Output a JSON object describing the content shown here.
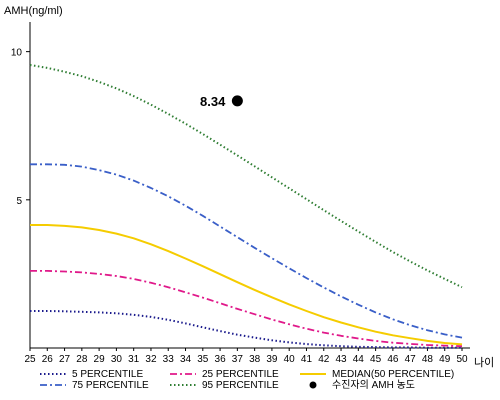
{
  "chart_data": {
    "type": "line",
    "ylabel": "AMH(ng/ml)",
    "xlabel": "나이",
    "xlim": [
      25,
      50
    ],
    "ylim": [
      0,
      11
    ],
    "x_ticks": [
      25,
      26,
      27,
      28,
      29,
      30,
      31,
      32,
      33,
      34,
      35,
      36,
      37,
      38,
      39,
      40,
      41,
      42,
      43,
      44,
      45,
      46,
      47,
      48,
      49,
      50
    ],
    "y_ticks": [
      5,
      10
    ],
    "grid": false,
    "legend_position": "bottom",
    "series": [
      {
        "name": "5 PERCENTILE",
        "color": "#1a1a8c",
        "style": "dotted",
        "x": [
          25,
          26,
          27,
          28,
          29,
          30,
          31,
          32,
          33,
          34,
          35,
          36,
          37,
          38,
          39,
          40,
          41,
          42,
          43,
          44,
          45,
          46,
          47,
          48,
          49,
          50
        ],
        "values": [
          1.25,
          1.25,
          1.24,
          1.22,
          1.2,
          1.17,
          1.12,
          1.05,
          0.95,
          0.83,
          0.7,
          0.57,
          0.45,
          0.35,
          0.26,
          0.19,
          0.13,
          0.09,
          0.06,
          0.04,
          0.03,
          0.02,
          0.02,
          0.01,
          0.01,
          0.01
        ]
      },
      {
        "name": "25 PERCENTILE",
        "color": "#e0198a",
        "style": "dashdot",
        "x": [
          25,
          26,
          27,
          28,
          29,
          30,
          31,
          32,
          33,
          34,
          35,
          36,
          37,
          38,
          39,
          40,
          41,
          42,
          43,
          44,
          45,
          46,
          47,
          48,
          49,
          50
        ],
        "values": [
          2.6,
          2.6,
          2.58,
          2.55,
          2.5,
          2.43,
          2.33,
          2.2,
          2.05,
          1.88,
          1.7,
          1.51,
          1.32,
          1.14,
          0.96,
          0.8,
          0.65,
          0.52,
          0.41,
          0.32,
          0.24,
          0.18,
          0.14,
          0.1,
          0.08,
          0.06
        ]
      },
      {
        "name": "MEDIAN(50 PERCENTILE)",
        "color": "#f5cc00",
        "style": "solid",
        "x": [
          25,
          26,
          27,
          28,
          29,
          30,
          31,
          32,
          33,
          34,
          35,
          36,
          37,
          38,
          39,
          40,
          41,
          42,
          43,
          44,
          45,
          46,
          47,
          48,
          49,
          50
        ],
        "values": [
          4.15,
          4.15,
          4.12,
          4.07,
          3.98,
          3.86,
          3.7,
          3.5,
          3.27,
          3.02,
          2.76,
          2.49,
          2.22,
          1.96,
          1.71,
          1.47,
          1.25,
          1.04,
          0.86,
          0.7,
          0.55,
          0.43,
          0.33,
          0.24,
          0.17,
          0.12
        ]
      },
      {
        "name": "75 PERCENTILE",
        "color": "#3a5fc8",
        "style": "dashdot",
        "x": [
          25,
          26,
          27,
          28,
          29,
          30,
          31,
          32,
          33,
          34,
          35,
          36,
          37,
          38,
          39,
          40,
          41,
          42,
          43,
          44,
          45,
          46,
          47,
          48,
          49,
          50
        ],
        "values": [
          6.2,
          6.2,
          6.18,
          6.12,
          6.0,
          5.85,
          5.65,
          5.4,
          5.12,
          4.8,
          4.46,
          4.1,
          3.74,
          3.38,
          3.03,
          2.69,
          2.36,
          2.04,
          1.74,
          1.46,
          1.2,
          0.97,
          0.77,
          0.6,
          0.46,
          0.35
        ]
      },
      {
        "name": "95 PERCENTILE",
        "color": "#2e7d32",
        "style": "dotted",
        "x": [
          25,
          26,
          27,
          28,
          29,
          30,
          31,
          32,
          33,
          34,
          35,
          36,
          37,
          38,
          39,
          40,
          41,
          42,
          43,
          44,
          45,
          46,
          47,
          48,
          49,
          50
        ],
        "values": [
          9.55,
          9.45,
          9.32,
          9.17,
          8.98,
          8.76,
          8.5,
          8.21,
          7.9,
          7.57,
          7.22,
          6.86,
          6.5,
          6.13,
          5.76,
          5.39,
          5.02,
          4.65,
          4.29,
          3.93,
          3.58,
          3.24,
          2.92,
          2.62,
          2.33,
          2.05
        ]
      }
    ],
    "points": [
      {
        "name": "수진자의 AMH 농도",
        "x": 37,
        "y": 8.34,
        "label": "8.34",
        "color": "#000000"
      }
    ]
  }
}
